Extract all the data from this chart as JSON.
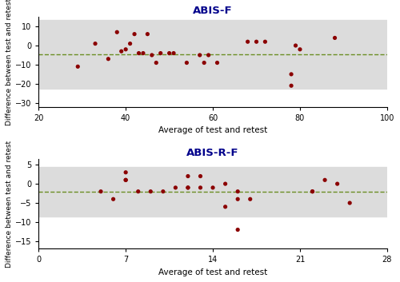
{
  "plot1": {
    "title": "ABIS-F",
    "xlabel": "Average of test and retest",
    "ylabel": "Difference between test and retest",
    "xlim": [
      20,
      100
    ],
    "ylim": [
      -32,
      15
    ],
    "xticks": [
      20,
      40,
      60,
      80,
      100
    ],
    "yticks": [
      -30,
      -20,
      -10,
      0,
      10
    ],
    "mean_line": -4.5,
    "loa_upper": 13.5,
    "loa_lower": -22.5,
    "scatter_x": [
      29,
      33,
      36,
      38,
      39,
      40,
      41,
      42,
      43,
      44,
      45,
      46,
      47,
      48,
      50,
      51,
      54,
      57,
      58,
      59,
      61,
      68,
      70,
      72,
      78,
      78,
      79,
      80,
      88
    ],
    "scatter_y": [
      -11,
      1,
      -7,
      7,
      -3,
      -2,
      1,
      6,
      -4,
      -4,
      6,
      -5,
      -9,
      -4,
      -4,
      -4,
      -9,
      -5,
      -9,
      -5,
      -9,
      2,
      2,
      2,
      -15,
      -21,
      0,
      -2,
      4
    ]
  },
  "plot2": {
    "title": "ABIS-R-F",
    "xlabel": "Average of test and retest",
    "ylabel": "Difference between test and retest",
    "xlim": [
      0,
      28
    ],
    "ylim": [
      -17,
      6.5
    ],
    "xticks": [
      0,
      7,
      14,
      21,
      28
    ],
    "yticks": [
      -15,
      -10,
      -5,
      0,
      5
    ],
    "mean_line": -2.0,
    "loa_upper": 4.5,
    "loa_lower": -8.5,
    "scatter_x": [
      5,
      6,
      7,
      7,
      7,
      8,
      9,
      10,
      11,
      12,
      12,
      12,
      13,
      13,
      14,
      15,
      15,
      16,
      16,
      17,
      16,
      22,
      22,
      23,
      24,
      25
    ],
    "scatter_y": [
      -2,
      -4,
      1,
      1,
      3,
      -2,
      -2,
      -2,
      -1,
      2,
      -1,
      -1,
      2,
      -1,
      -1,
      0,
      -6,
      -2,
      -4,
      -4,
      -12,
      -2,
      -2,
      1,
      0,
      -5
    ]
  },
  "dot_color": "#8B0000",
  "dashed_line_color": "#6B8E23",
  "bg_color": "#DCDCDC",
  "title_color": "#00008B",
  "fig_width": 5.0,
  "fig_height": 3.53,
  "dpi": 100
}
